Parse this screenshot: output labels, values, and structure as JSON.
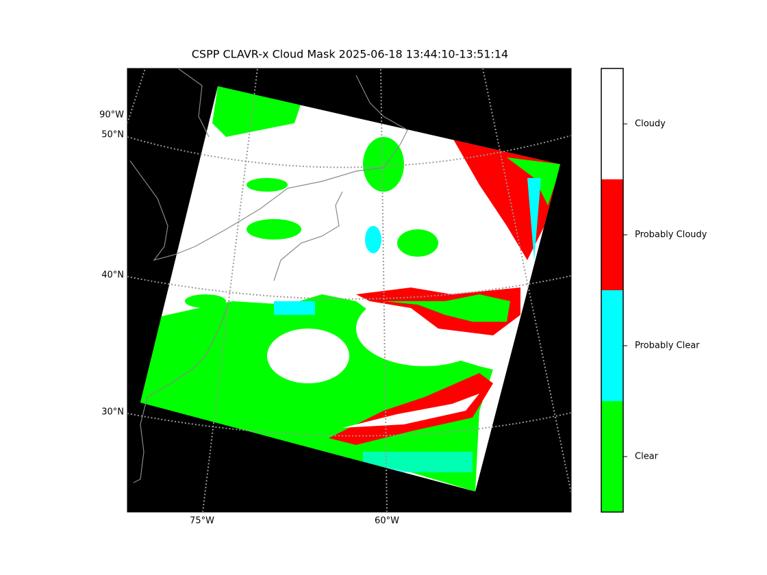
{
  "title": "CSPP CLAVR-x Cloud Mask 2025-06-18 13:44:10-13:51:14",
  "lat_labels": [
    "90°W",
    "50°N",
    "40°N",
    "30°N"
  ],
  "lon_labels": [
    "75°W",
    "60°W"
  ],
  "colorbar": [
    {
      "label": "Cloudy",
      "color": "#ffffff"
    },
    {
      "label": "Probably Cloudy",
      "color": "#ff0000"
    },
    {
      "label": "Probably Clear",
      "color": "#00ffff"
    },
    {
      "label": "Clear",
      "color": "#00ff00"
    }
  ]
}
